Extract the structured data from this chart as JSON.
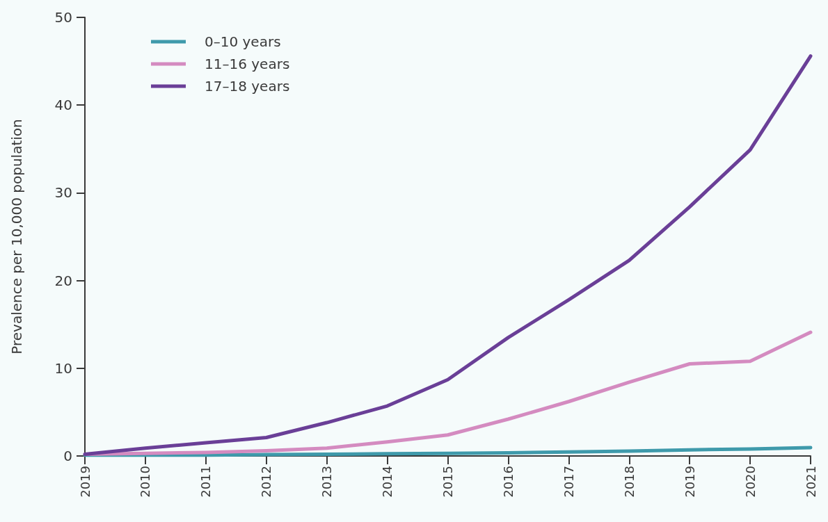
{
  "chart_data": {
    "type": "line",
    "ylabel": "Prevalence per 10,000 population",
    "categories": [
      "2019",
      "2010",
      "2011",
      "2012",
      "2013",
      "2014",
      "2015",
      "2016",
      "2017",
      "2018",
      "2019",
      "2020",
      "2021"
    ],
    "series": [
      {
        "name": "0–10 years",
        "color": "#3f9aab",
        "values": [
          0.1,
          0.1,
          0.1,
          0.15,
          0.2,
          0.25,
          0.3,
          0.35,
          0.45,
          0.55,
          0.7,
          0.8,
          0.95
        ]
      },
      {
        "name": "11–16 years",
        "color": "#d48bc0",
        "values": [
          0.2,
          0.3,
          0.4,
          0.6,
          0.9,
          1.6,
          2.4,
          4.2,
          6.2,
          8.4,
          10.5,
          10.8,
          14.1
        ]
      },
      {
        "name": "17–18 years",
        "color": "#6a3f97",
        "values": [
          0.2,
          0.9,
          1.5,
          2.1,
          3.8,
          5.7,
          8.7,
          13.5,
          17.8,
          22.3,
          28.4,
          34.9,
          45.6
        ]
      }
    ],
    "ylim": [
      0,
      50
    ],
    "yticks": [
      0,
      10,
      20,
      30,
      40,
      50
    ],
    "grid": false,
    "legend": "top left",
    "marker": "none",
    "line_style": "solid"
  }
}
